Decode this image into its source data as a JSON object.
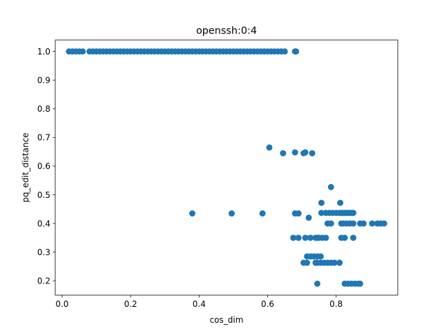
{
  "chart_data": {
    "type": "scatter",
    "title": "openssh:0:4",
    "xlabel": "cos_dim",
    "ylabel": "pq_edit_distance",
    "xlim": [
      -0.02,
      0.98
    ],
    "ylim": [
      0.15,
      1.04
    ],
    "xticks": [
      0.0,
      0.2,
      0.4,
      0.6,
      0.8
    ],
    "xtick_labels": [
      "0.0",
      "0.2",
      "0.4",
      "0.6",
      "0.8"
    ],
    "yticks": [
      0.2,
      0.3,
      0.4,
      0.5,
      0.6,
      0.7,
      0.8,
      0.9,
      1.0
    ],
    "ytick_labels": [
      "0.2",
      "0.3",
      "0.4",
      "0.5",
      "0.6",
      "0.7",
      "0.8",
      "0.9",
      "1.0"
    ],
    "grid": false,
    "marker_color": "#1f77b4",
    "series": [
      {
        "points": [
          [
            0.02,
            1.0
          ],
          [
            0.03,
            1.0
          ],
          [
            0.04,
            1.0
          ],
          [
            0.05,
            1.0
          ],
          [
            0.06,
            1.0
          ],
          [
            0.08,
            1.0
          ],
          [
            0.09,
            1.0
          ],
          [
            0.1,
            1.0
          ],
          [
            0.11,
            1.0
          ],
          [
            0.12,
            1.0
          ],
          [
            0.13,
            1.0
          ],
          [
            0.14,
            1.0
          ],
          [
            0.15,
            1.0
          ],
          [
            0.16,
            1.0
          ],
          [
            0.17,
            1.0
          ],
          [
            0.18,
            1.0
          ],
          [
            0.19,
            1.0
          ],
          [
            0.2,
            1.0
          ],
          [
            0.21,
            1.0
          ],
          [
            0.22,
            1.0
          ],
          [
            0.23,
            1.0
          ],
          [
            0.24,
            1.0
          ],
          [
            0.25,
            1.0
          ],
          [
            0.26,
            1.0
          ],
          [
            0.27,
            1.0
          ],
          [
            0.28,
            1.0
          ],
          [
            0.29,
            1.0
          ],
          [
            0.3,
            1.0
          ],
          [
            0.31,
            1.0
          ],
          [
            0.32,
            1.0
          ],
          [
            0.33,
            1.0
          ],
          [
            0.34,
            1.0
          ],
          [
            0.35,
            1.0
          ],
          [
            0.36,
            1.0
          ],
          [
            0.37,
            1.0
          ],
          [
            0.38,
            1.0
          ],
          [
            0.39,
            1.0
          ],
          [
            0.4,
            1.0
          ],
          [
            0.41,
            1.0
          ],
          [
            0.42,
            1.0
          ],
          [
            0.43,
            1.0
          ],
          [
            0.44,
            1.0
          ],
          [
            0.45,
            1.0
          ],
          [
            0.46,
            1.0
          ],
          [
            0.47,
            1.0
          ],
          [
            0.48,
            1.0
          ],
          [
            0.49,
            1.0
          ],
          [
            0.5,
            1.0
          ],
          [
            0.51,
            1.0
          ],
          [
            0.52,
            1.0
          ],
          [
            0.53,
            1.0
          ],
          [
            0.54,
            1.0
          ],
          [
            0.55,
            1.0
          ],
          [
            0.56,
            1.0
          ],
          [
            0.57,
            1.0
          ],
          [
            0.58,
            1.0
          ],
          [
            0.59,
            1.0
          ],
          [
            0.6,
            1.0
          ],
          [
            0.61,
            1.0
          ],
          [
            0.62,
            1.0
          ],
          [
            0.63,
            1.0
          ],
          [
            0.64,
            1.0
          ],
          [
            0.65,
            1.0
          ],
          [
            0.68,
            1.0
          ],
          [
            0.683,
            1.0
          ],
          [
            0.605,
            0.665
          ],
          [
            0.645,
            0.645
          ],
          [
            0.68,
            0.648
          ],
          [
            0.705,
            0.645
          ],
          [
            0.71,
            0.648
          ],
          [
            0.73,
            0.645
          ],
          [
            0.38,
            0.435
          ],
          [
            0.495,
            0.435
          ],
          [
            0.585,
            0.435
          ],
          [
            0.68,
            0.435
          ],
          [
            0.69,
            0.435
          ],
          [
            0.785,
            0.527
          ],
          [
            0.757,
            0.472
          ],
          [
            0.812,
            0.472
          ],
          [
            0.757,
            0.437
          ],
          [
            0.77,
            0.437
          ],
          [
            0.78,
            0.437
          ],
          [
            0.79,
            0.437
          ],
          [
            0.8,
            0.437
          ],
          [
            0.81,
            0.437
          ],
          [
            0.815,
            0.437
          ],
          [
            0.82,
            0.437
          ],
          [
            0.825,
            0.437
          ],
          [
            0.83,
            0.437
          ],
          [
            0.835,
            0.437
          ],
          [
            0.84,
            0.437
          ],
          [
            0.845,
            0.437
          ],
          [
            0.85,
            0.437
          ],
          [
            0.72,
            0.42
          ],
          [
            0.775,
            0.4
          ],
          [
            0.785,
            0.4
          ],
          [
            0.815,
            0.4
          ],
          [
            0.82,
            0.4
          ],
          [
            0.83,
            0.4
          ],
          [
            0.84,
            0.4
          ],
          [
            0.85,
            0.4
          ],
          [
            0.87,
            0.4
          ],
          [
            0.88,
            0.4
          ],
          [
            0.905,
            0.4
          ],
          [
            0.92,
            0.4
          ],
          [
            0.93,
            0.4
          ],
          [
            0.94,
            0.4
          ],
          [
            0.675,
            0.35
          ],
          [
            0.69,
            0.35
          ],
          [
            0.71,
            0.35
          ],
          [
            0.725,
            0.35
          ],
          [
            0.74,
            0.35
          ],
          [
            0.745,
            0.35
          ],
          [
            0.75,
            0.35
          ],
          [
            0.76,
            0.35
          ],
          [
            0.77,
            0.35
          ],
          [
            0.815,
            0.35
          ],
          [
            0.825,
            0.35
          ],
          [
            0.85,
            0.35
          ],
          [
            0.715,
            0.285
          ],
          [
            0.725,
            0.285
          ],
          [
            0.735,
            0.285
          ],
          [
            0.745,
            0.285
          ],
          [
            0.755,
            0.285
          ],
          [
            0.705,
            0.263
          ],
          [
            0.715,
            0.263
          ],
          [
            0.74,
            0.263
          ],
          [
            0.745,
            0.263
          ],
          [
            0.755,
            0.263
          ],
          [
            0.765,
            0.263
          ],
          [
            0.775,
            0.263
          ],
          [
            0.785,
            0.263
          ],
          [
            0.795,
            0.263
          ],
          [
            0.81,
            0.263
          ],
          [
            0.745,
            0.19
          ],
          [
            0.825,
            0.19
          ],
          [
            0.835,
            0.19
          ],
          [
            0.845,
            0.19
          ],
          [
            0.855,
            0.19
          ],
          [
            0.865,
            0.19
          ],
          [
            0.87,
            0.19
          ]
        ]
      }
    ]
  }
}
